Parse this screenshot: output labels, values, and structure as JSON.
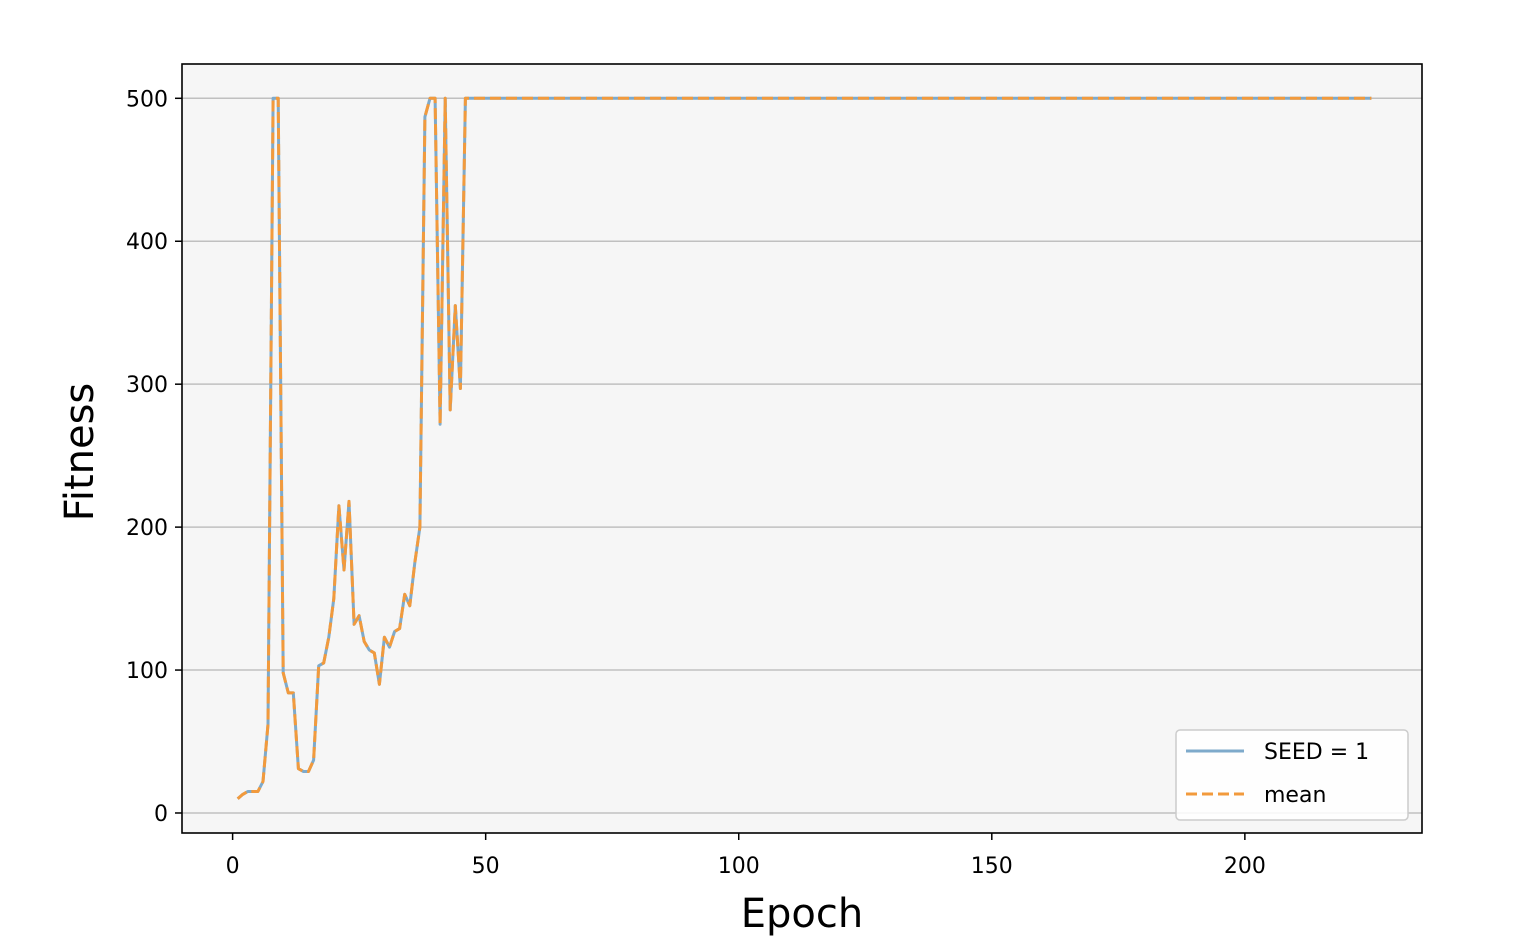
{
  "chart_data": {
    "type": "line",
    "title": "",
    "xlabel": "Epoch",
    "ylabel": "Fitness",
    "xlim": [
      -10,
      235
    ],
    "ylim": [
      -14,
      524
    ],
    "xticks": [
      0,
      50,
      100,
      150,
      200
    ],
    "yticks": [
      0,
      100,
      200,
      300,
      400,
      500
    ],
    "grid": "horizontal",
    "legend_position": "lower-right",
    "background_color": "#f6f6f6",
    "x": [
      1,
      2,
      3,
      4,
      5,
      6,
      7,
      8,
      9,
      10,
      11,
      12,
      13,
      14,
      15,
      16,
      17,
      18,
      19,
      20,
      21,
      22,
      23,
      24,
      25,
      26,
      27,
      28,
      29,
      30,
      31,
      32,
      33,
      34,
      35,
      36,
      37,
      38,
      39,
      40,
      41,
      42,
      43,
      44,
      45,
      46,
      225
    ],
    "series": [
      {
        "name": "SEED = 1",
        "color": "#7eaacb",
        "style": "solid",
        "values": [
          10,
          13,
          15,
          15,
          15,
          22,
          62,
          500,
          500,
          98,
          84,
          84,
          31,
          29,
          29,
          37,
          103,
          105,
          123,
          150,
          215,
          170,
          218,
          132,
          138,
          120,
          114,
          112,
          90,
          123,
          116,
          127,
          129,
          153,
          145,
          175,
          200,
          487,
          500,
          500,
          272,
          500,
          282,
          355,
          297,
          500,
          500
        ]
      },
      {
        "name": "mean",
        "color": "#f29a3c",
        "style": "dashed",
        "values": [
          10,
          13,
          15,
          15,
          15,
          22,
          62,
          500,
          500,
          98,
          84,
          84,
          31,
          29,
          29,
          37,
          103,
          105,
          123,
          150,
          215,
          170,
          218,
          132,
          138,
          120,
          114,
          112,
          90,
          123,
          116,
          127,
          129,
          153,
          145,
          175,
          200,
          487,
          500,
          500,
          272,
          500,
          282,
          355,
          297,
          500,
          500
        ]
      }
    ]
  }
}
